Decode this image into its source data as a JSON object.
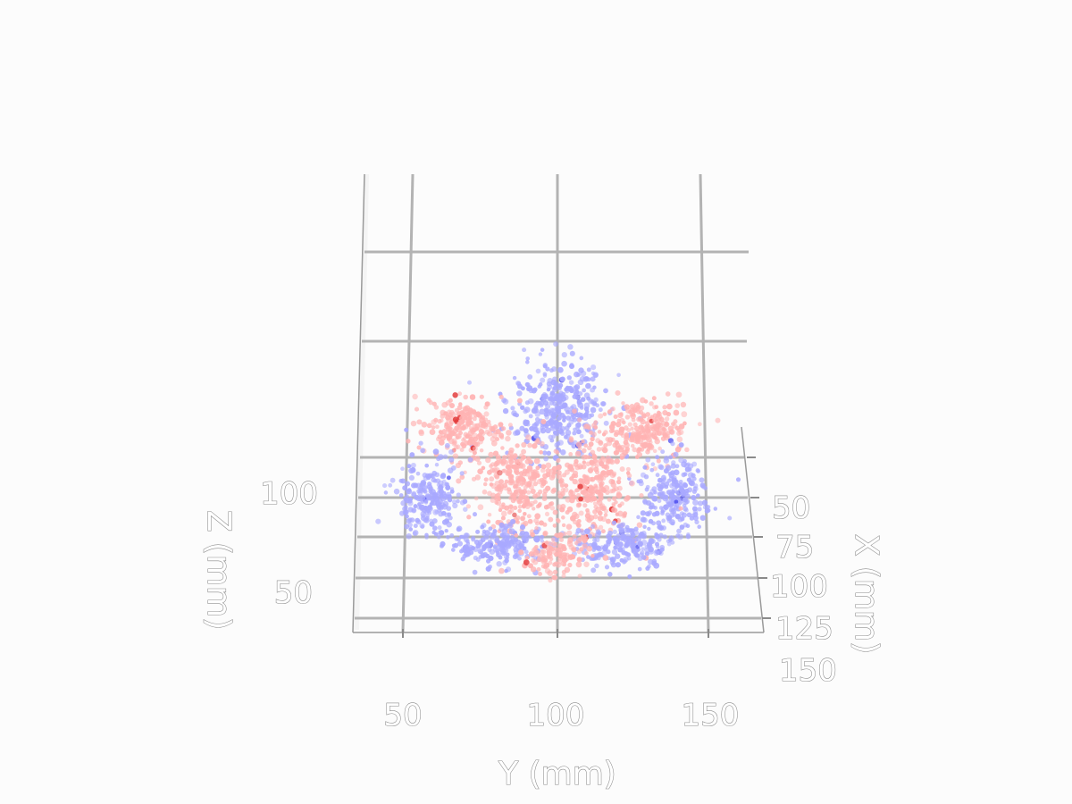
{
  "chart_data": {
    "type": "scatter",
    "projection": "3d",
    "title": "",
    "xlabel": "X (mm)",
    "ylabel": "Y (mm)",
    "zlabel": "Z (mm)",
    "x_ticks": [
      "50",
      "75",
      "100",
      "125",
      "150"
    ],
    "y_ticks": [
      "50",
      "100",
      "150"
    ],
    "z_ticks": [
      "50",
      "100"
    ],
    "colormap": "bwr",
    "colors": {
      "low": "#a9a9ff",
      "mid": "#f6f6f6",
      "high": "#ffb3b3",
      "extreme_high": "#e23a3a",
      "extreme_low": "#5555ee"
    },
    "clusters": [
      {
        "name": "top-center-lobe",
        "color": "low",
        "y_center": 100,
        "z_center": 145,
        "y_spread": 15,
        "z_spread": 22,
        "count": 360
      },
      {
        "name": "upper-left-lobe",
        "color": "high",
        "y_center": 70,
        "z_center": 135,
        "y_spread": 13,
        "z_spread": 14,
        "count": 240
      },
      {
        "name": "upper-right-lobe",
        "color": "high",
        "y_center": 128,
        "z_center": 135,
        "y_spread": 13,
        "z_spread": 14,
        "count": 240
      },
      {
        "name": "left-lobe",
        "color": "low",
        "y_center": 58,
        "z_center": 100,
        "y_spread": 10,
        "z_spread": 20,
        "count": 240
      },
      {
        "name": "right-lobe",
        "color": "low",
        "y_center": 138,
        "z_center": 100,
        "y_spread": 10,
        "z_spread": 20,
        "count": 240
      },
      {
        "name": "center-left-lobe",
        "color": "high",
        "y_center": 88,
        "z_center": 105,
        "y_spread": 12,
        "z_spread": 22,
        "count": 300
      },
      {
        "name": "center-right-lobe",
        "color": "high",
        "y_center": 112,
        "z_center": 105,
        "y_spread": 12,
        "z_spread": 22,
        "count": 300
      },
      {
        "name": "bottom-left-lobe",
        "color": "low",
        "y_center": 80,
        "z_center": 75,
        "y_spread": 14,
        "z_spread": 10,
        "count": 200
      },
      {
        "name": "bottom-right-lobe",
        "color": "low",
        "y_center": 122,
        "z_center": 75,
        "y_spread": 14,
        "z_spread": 10,
        "count": 200
      },
      {
        "name": "bottom-center-lobe",
        "color": "high",
        "y_center": 100,
        "z_center": 70,
        "y_spread": 10,
        "z_spread": 10,
        "count": 120
      }
    ]
  }
}
